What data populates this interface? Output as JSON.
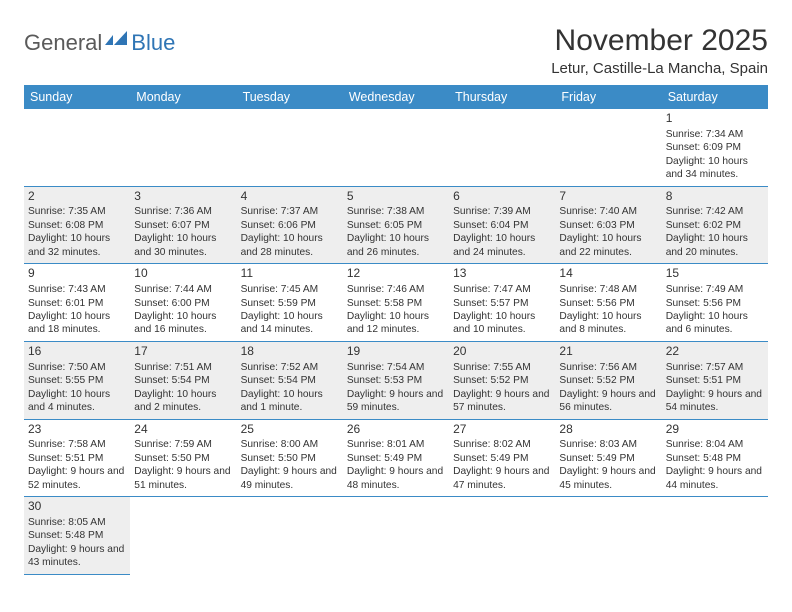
{
  "logo": {
    "general": "General",
    "blue": "Blue"
  },
  "title": "November 2025",
  "location": "Letur, Castille-La Mancha, Spain",
  "header_bg": "#3b8bc6",
  "shaded_bg": "#eeeeee",
  "weekdays": [
    "Sunday",
    "Monday",
    "Tuesday",
    "Wednesday",
    "Thursday",
    "Friday",
    "Saturday"
  ],
  "weeks": [
    [
      null,
      null,
      null,
      null,
      null,
      null,
      {
        "n": "1",
        "sr": "Sunrise: 7:34 AM",
        "ss": "Sunset: 6:09 PM",
        "dl": "Daylight: 10 hours and 34 minutes."
      }
    ],
    [
      {
        "n": "2",
        "sr": "Sunrise: 7:35 AM",
        "ss": "Sunset: 6:08 PM",
        "dl": "Daylight: 10 hours and 32 minutes.",
        "sh": true
      },
      {
        "n": "3",
        "sr": "Sunrise: 7:36 AM",
        "ss": "Sunset: 6:07 PM",
        "dl": "Daylight: 10 hours and 30 minutes.",
        "sh": true
      },
      {
        "n": "4",
        "sr": "Sunrise: 7:37 AM",
        "ss": "Sunset: 6:06 PM",
        "dl": "Daylight: 10 hours and 28 minutes.",
        "sh": true
      },
      {
        "n": "5",
        "sr": "Sunrise: 7:38 AM",
        "ss": "Sunset: 6:05 PM",
        "dl": "Daylight: 10 hours and 26 minutes.",
        "sh": true
      },
      {
        "n": "6",
        "sr": "Sunrise: 7:39 AM",
        "ss": "Sunset: 6:04 PM",
        "dl": "Daylight: 10 hours and 24 minutes.",
        "sh": true
      },
      {
        "n": "7",
        "sr": "Sunrise: 7:40 AM",
        "ss": "Sunset: 6:03 PM",
        "dl": "Daylight: 10 hours and 22 minutes.",
        "sh": true
      },
      {
        "n": "8",
        "sr": "Sunrise: 7:42 AM",
        "ss": "Sunset: 6:02 PM",
        "dl": "Daylight: 10 hours and 20 minutes.",
        "sh": true
      }
    ],
    [
      {
        "n": "9",
        "sr": "Sunrise: 7:43 AM",
        "ss": "Sunset: 6:01 PM",
        "dl": "Daylight: 10 hours and 18 minutes."
      },
      {
        "n": "10",
        "sr": "Sunrise: 7:44 AM",
        "ss": "Sunset: 6:00 PM",
        "dl": "Daylight: 10 hours and 16 minutes."
      },
      {
        "n": "11",
        "sr": "Sunrise: 7:45 AM",
        "ss": "Sunset: 5:59 PM",
        "dl": "Daylight: 10 hours and 14 minutes."
      },
      {
        "n": "12",
        "sr": "Sunrise: 7:46 AM",
        "ss": "Sunset: 5:58 PM",
        "dl": "Daylight: 10 hours and 12 minutes."
      },
      {
        "n": "13",
        "sr": "Sunrise: 7:47 AM",
        "ss": "Sunset: 5:57 PM",
        "dl": "Daylight: 10 hours and 10 minutes."
      },
      {
        "n": "14",
        "sr": "Sunrise: 7:48 AM",
        "ss": "Sunset: 5:56 PM",
        "dl": "Daylight: 10 hours and 8 minutes."
      },
      {
        "n": "15",
        "sr": "Sunrise: 7:49 AM",
        "ss": "Sunset: 5:56 PM",
        "dl": "Daylight: 10 hours and 6 minutes."
      }
    ],
    [
      {
        "n": "16",
        "sr": "Sunrise: 7:50 AM",
        "ss": "Sunset: 5:55 PM",
        "dl": "Daylight: 10 hours and 4 minutes.",
        "sh": true
      },
      {
        "n": "17",
        "sr": "Sunrise: 7:51 AM",
        "ss": "Sunset: 5:54 PM",
        "dl": "Daylight: 10 hours and 2 minutes.",
        "sh": true
      },
      {
        "n": "18",
        "sr": "Sunrise: 7:52 AM",
        "ss": "Sunset: 5:54 PM",
        "dl": "Daylight: 10 hours and 1 minute.",
        "sh": true
      },
      {
        "n": "19",
        "sr": "Sunrise: 7:54 AM",
        "ss": "Sunset: 5:53 PM",
        "dl": "Daylight: 9 hours and 59 minutes.",
        "sh": true
      },
      {
        "n": "20",
        "sr": "Sunrise: 7:55 AM",
        "ss": "Sunset: 5:52 PM",
        "dl": "Daylight: 9 hours and 57 minutes.",
        "sh": true
      },
      {
        "n": "21",
        "sr": "Sunrise: 7:56 AM",
        "ss": "Sunset: 5:52 PM",
        "dl": "Daylight: 9 hours and 56 minutes.",
        "sh": true
      },
      {
        "n": "22",
        "sr": "Sunrise: 7:57 AM",
        "ss": "Sunset: 5:51 PM",
        "dl": "Daylight: 9 hours and 54 minutes.",
        "sh": true
      }
    ],
    [
      {
        "n": "23",
        "sr": "Sunrise: 7:58 AM",
        "ss": "Sunset: 5:51 PM",
        "dl": "Daylight: 9 hours and 52 minutes."
      },
      {
        "n": "24",
        "sr": "Sunrise: 7:59 AM",
        "ss": "Sunset: 5:50 PM",
        "dl": "Daylight: 9 hours and 51 minutes."
      },
      {
        "n": "25",
        "sr": "Sunrise: 8:00 AM",
        "ss": "Sunset: 5:50 PM",
        "dl": "Daylight: 9 hours and 49 minutes."
      },
      {
        "n": "26",
        "sr": "Sunrise: 8:01 AM",
        "ss": "Sunset: 5:49 PM",
        "dl": "Daylight: 9 hours and 48 minutes."
      },
      {
        "n": "27",
        "sr": "Sunrise: 8:02 AM",
        "ss": "Sunset: 5:49 PM",
        "dl": "Daylight: 9 hours and 47 minutes."
      },
      {
        "n": "28",
        "sr": "Sunrise: 8:03 AM",
        "ss": "Sunset: 5:49 PM",
        "dl": "Daylight: 9 hours and 45 minutes."
      },
      {
        "n": "29",
        "sr": "Sunrise: 8:04 AM",
        "ss": "Sunset: 5:48 PM",
        "dl": "Daylight: 9 hours and 44 minutes."
      }
    ],
    [
      {
        "n": "30",
        "sr": "Sunrise: 8:05 AM",
        "ss": "Sunset: 5:48 PM",
        "dl": "Daylight: 9 hours and 43 minutes.",
        "sh": true
      },
      null,
      null,
      null,
      null,
      null,
      null
    ]
  ]
}
